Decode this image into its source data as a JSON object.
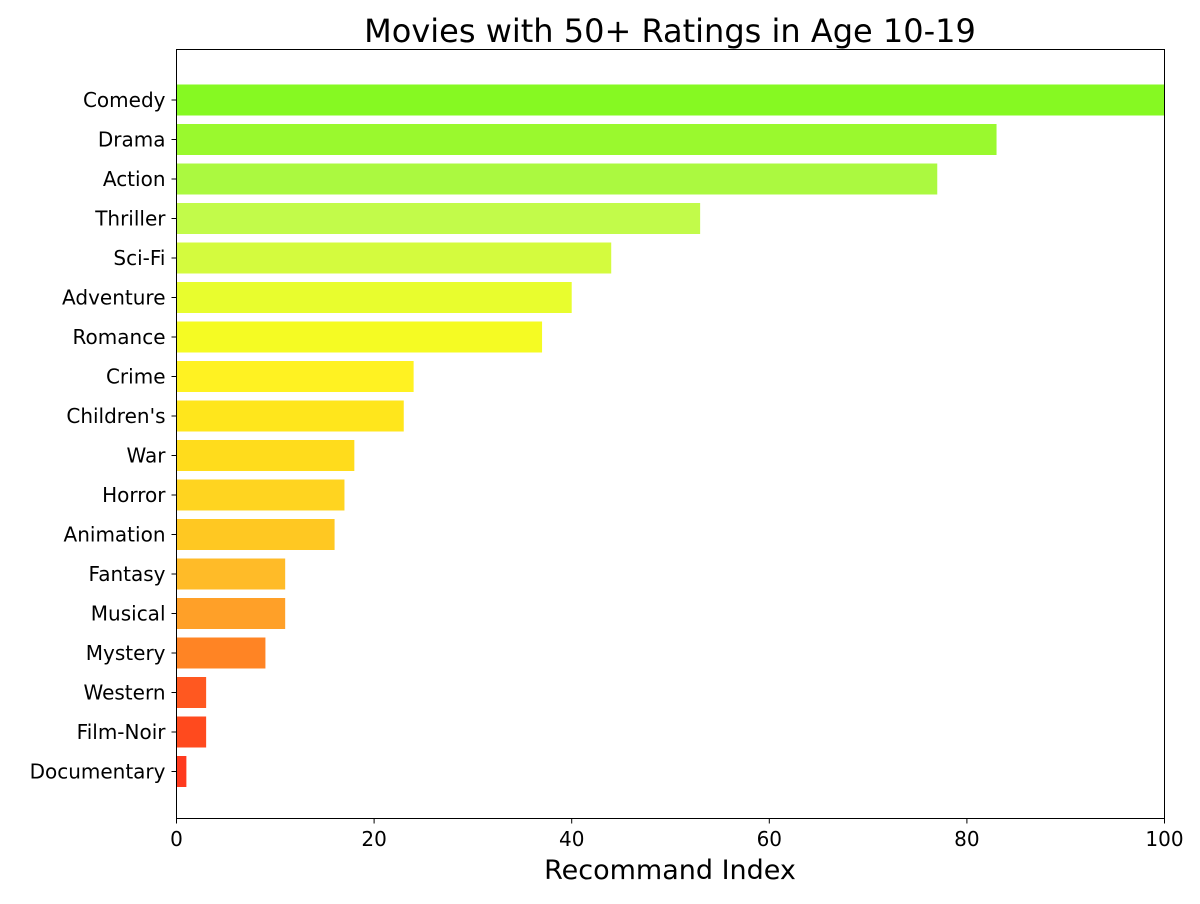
{
  "chart_data": {
    "type": "bar",
    "orientation": "horizontal",
    "title": "Movies with 50+ Ratings in Age 10-19",
    "xlabel": "Recommand Index",
    "ylabel": "",
    "xlim": [
      0,
      100
    ],
    "xticks": [
      0,
      20,
      40,
      60,
      80,
      100
    ],
    "grid": false,
    "categories": [
      "Comedy",
      "Drama",
      "Action",
      "Thriller",
      "Sci-Fi",
      "Adventure",
      "Romance",
      "Crime",
      "Children's",
      "War",
      "Horror",
      "Animation",
      "Fantasy",
      "Musical",
      "Mystery",
      "Western",
      "Film-Noir",
      "Documentary"
    ],
    "values": [
      100,
      83,
      77,
      53,
      44,
      40,
      37,
      24,
      23,
      18,
      17,
      16,
      11,
      11,
      9,
      3,
      3,
      1
    ],
    "colors": [
      "#86f922",
      "#9af92e",
      "#abf940",
      "#c2fb4a",
      "#d4fb3e",
      "#e8fd2e",
      "#f5fb23",
      "#fff222",
      "#ffe61c",
      "#ffdc1c",
      "#ffd420",
      "#ffc822",
      "#ffbb28",
      "#ffa028",
      "#ff8424",
      "#ff5820",
      "#ff4a1e",
      "#ff3a1e"
    ]
  }
}
